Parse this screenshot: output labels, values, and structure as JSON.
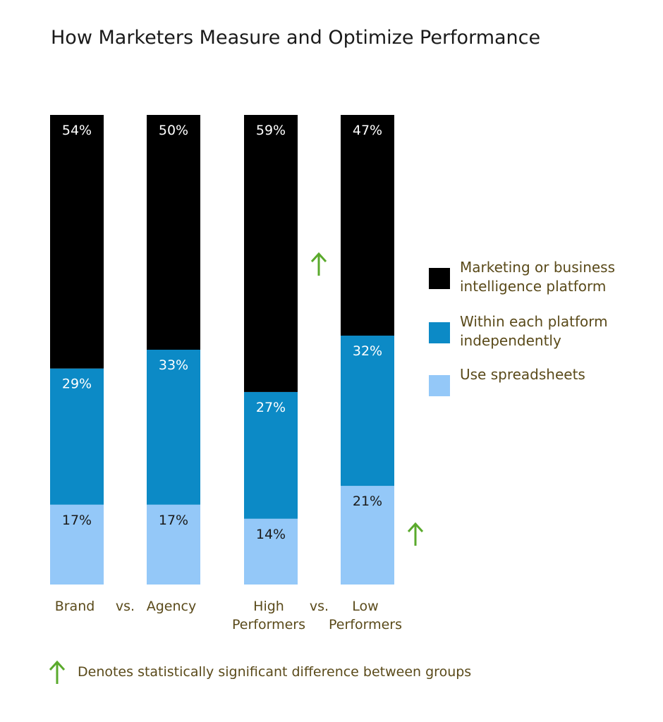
{
  "chart_data": {
    "type": "bar",
    "stacked": true,
    "title": "How Marketers Measure and Optimize Performance",
    "categories": [
      [
        "Brand"
      ],
      [
        "Agency"
      ],
      [
        "High",
        "Performers"
      ],
      [
        "Low",
        "Performers"
      ]
    ],
    "separators": [
      "vs.",
      "vs."
    ],
    "series": [
      {
        "name": "Use spreadsheets",
        "values": [
          17,
          17,
          14,
          21
        ],
        "color": "#94c8f8",
        "labels": [
          "17%",
          "17%",
          "14%",
          "21%"
        ],
        "text_color": "#1a1a1a"
      },
      {
        "name": "Within each platform independently",
        "values": [
          29,
          33,
          27,
          32
        ],
        "color": "#0c8ac6",
        "labels": [
          "29%",
          "33%",
          "27%",
          "32%"
        ],
        "text_color": "#ffffff"
      },
      {
        "name": "Marketing or business intelligence platform",
        "values": [
          54,
          50,
          59,
          47
        ],
        "color": "#000000",
        "labels": [
          "54%",
          "50%",
          "59%",
          "47%"
        ],
        "text_color": "#ffffff"
      }
    ],
    "legend": [
      {
        "lines": [
          "Marketing or business",
          "intelligence platform"
        ],
        "color": "#000000"
      },
      {
        "lines": [
          "Within each platform",
          "independently"
        ],
        "color": "#0c8ac6"
      },
      {
        "lines": [
          "Use spreadsheets"
        ],
        "color": "#94c8f8"
      }
    ],
    "significance_markers": [
      {
        "category_index": 2,
        "series": "Marketing or business intelligence platform"
      },
      {
        "category_index": 3,
        "series": "Use spreadsheets"
      }
    ],
    "ylim": [
      0,
      100
    ],
    "grid": false,
    "legend_placement": "right"
  },
  "footnote": {
    "text": "Denotes statistically significant difference between groups",
    "icon": "up-arrow-icon",
    "color": "#5aaa2c"
  }
}
